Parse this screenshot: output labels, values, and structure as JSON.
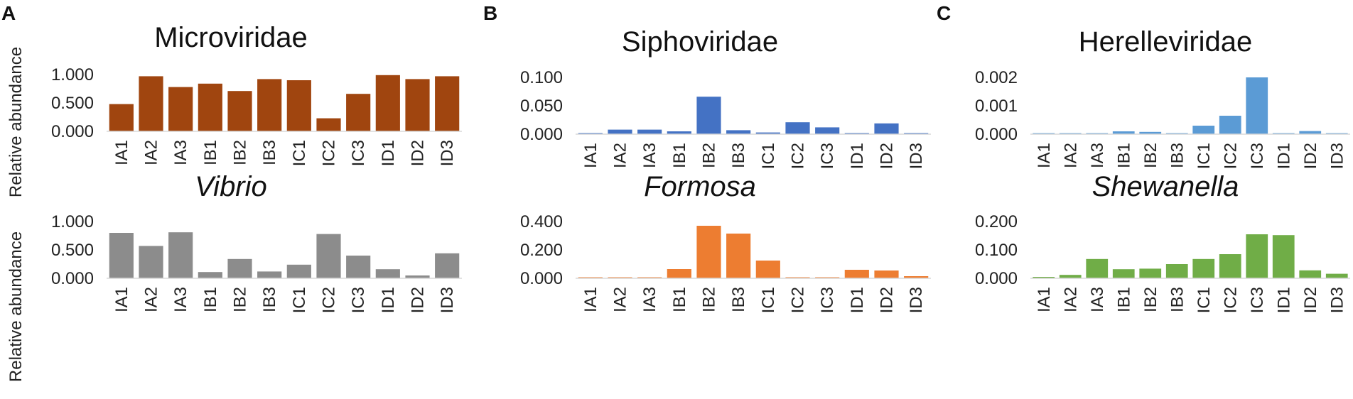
{
  "panels": [
    "A",
    "B",
    "C"
  ],
  "ylabel": "Relative abundance",
  "colors": {
    "microviridae": "#A0450F",
    "vibrio": "#8C8C8C",
    "siphoviridae": "#4472C4",
    "formosa": "#ED7D31",
    "herelleviridae": "#5B9BD5",
    "shewanella": "#70AD47"
  },
  "chart_data": [
    {
      "id": "microviridae",
      "panel": "A",
      "row": 1,
      "type": "bar",
      "title": "Microviridae",
      "title_italic": false,
      "categories": [
        "IA1",
        "IA2",
        "IA3",
        "IB1",
        "IB2",
        "IB3",
        "IC1",
        "IC2",
        "IC3",
        "ID1",
        "ID2",
        "ID3"
      ],
      "values": [
        0.48,
        0.97,
        0.78,
        0.84,
        0.71,
        0.92,
        0.9,
        0.23,
        0.66,
        0.99,
        0.92,
        0.97
      ],
      "ylim": [
        0,
        1.0
      ],
      "yticks": [
        0,
        0.5,
        1.0
      ],
      "ytick_labels": [
        "0.000",
        "0.500",
        "1.000"
      ],
      "color": "#A0450F",
      "ylabel": "Relative abundance"
    },
    {
      "id": "vibrio",
      "panel": "A",
      "row": 2,
      "type": "bar",
      "title": "Vibrio",
      "title_italic": true,
      "categories": [
        "IA1",
        "IA2",
        "IA3",
        "IB1",
        "IB2",
        "IB3",
        "IC1",
        "IC2",
        "IC3",
        "ID1",
        "ID2",
        "ID3"
      ],
      "values": [
        0.8,
        0.57,
        0.81,
        0.11,
        0.34,
        0.12,
        0.24,
        0.78,
        0.4,
        0.16,
        0.05,
        0.44
      ],
      "ylim": [
        0,
        1.0
      ],
      "yticks": [
        0,
        0.5,
        1.0
      ],
      "ytick_labels": [
        "0.000",
        "0.500",
        "1.000"
      ],
      "color": "#8C8C8C",
      "ylabel": "Relative abundance"
    },
    {
      "id": "siphoviridae",
      "panel": "B",
      "row": 1,
      "type": "bar",
      "title": "Siphoviridae",
      "title_italic": false,
      "categories": [
        "IA1",
        "IA2",
        "IA3",
        "IB1",
        "IB2",
        "IB3",
        "IC1",
        "IC2",
        "IC3",
        "ID1",
        "ID2",
        "ID3"
      ],
      "values": [
        0.002,
        0.008,
        0.008,
        0.005,
        0.066,
        0.007,
        0.003,
        0.021,
        0.012,
        0.002,
        0.019,
        0.002
      ],
      "ylim": [
        0,
        0.1
      ],
      "yticks": [
        0,
        0.05,
        0.1
      ],
      "ytick_labels": [
        "0.000",
        "0.050",
        "0.100"
      ],
      "color": "#4472C4",
      "ylabel": ""
    },
    {
      "id": "formosa",
      "panel": "B",
      "row": 2,
      "type": "bar",
      "title": "Formosa",
      "title_italic": true,
      "categories": [
        "IA1",
        "IA2",
        "IA3",
        "IB1",
        "IB2",
        "IB3",
        "IC1",
        "IC2",
        "IC3",
        "ID1",
        "ID2",
        "ID3"
      ],
      "values": [
        0.005,
        0.007,
        0.005,
        0.065,
        0.37,
        0.315,
        0.125,
        0.005,
        0.005,
        0.06,
        0.055,
        0.015
      ],
      "ylim": [
        0,
        0.4
      ],
      "yticks": [
        0,
        0.2,
        0.4
      ],
      "ytick_labels": [
        "0.000",
        "0.200",
        "0.400"
      ],
      "color": "#ED7D31",
      "ylabel": ""
    },
    {
      "id": "herelleviridae",
      "panel": "C",
      "row": 1,
      "type": "bar",
      "title": "Herelleviridae",
      "title_italic": false,
      "categories": [
        "IA1",
        "IA2",
        "IA3",
        "IB1",
        "IB2",
        "IB3",
        "IC1",
        "IC2",
        "IC3",
        "ID1",
        "ID2",
        "ID3"
      ],
      "values": [
        3e-05,
        3e-05,
        3e-05,
        0.0001,
        8e-05,
        2e-05,
        0.0003,
        0.00065,
        0.002,
        0.0,
        0.00011,
        3e-05
      ],
      "ylim": [
        0,
        0.002
      ],
      "yticks": [
        0,
        0.001,
        0.002
      ],
      "ytick_labels": [
        "0.000",
        "0.001",
        "0.002"
      ],
      "color": "#5B9BD5",
      "ylabel": ""
    },
    {
      "id": "shewanella",
      "panel": "C",
      "row": 2,
      "type": "bar",
      "title": "Shewanella",
      "title_italic": true,
      "categories": [
        "IA1",
        "IA2",
        "IA3",
        "IB1",
        "IB2",
        "IB3",
        "IC1",
        "IC2",
        "IC3",
        "ID1",
        "ID2",
        "ID3"
      ],
      "values": [
        0.005,
        0.012,
        0.068,
        0.032,
        0.034,
        0.05,
        0.068,
        0.085,
        0.155,
        0.152,
        0.028,
        0.016
      ],
      "ylim": [
        0,
        0.2
      ],
      "yticks": [
        0,
        0.1,
        0.2
      ],
      "ytick_labels": [
        "0.000",
        "0.100",
        "0.200"
      ],
      "color": "#70AD47",
      "ylabel": ""
    }
  ]
}
